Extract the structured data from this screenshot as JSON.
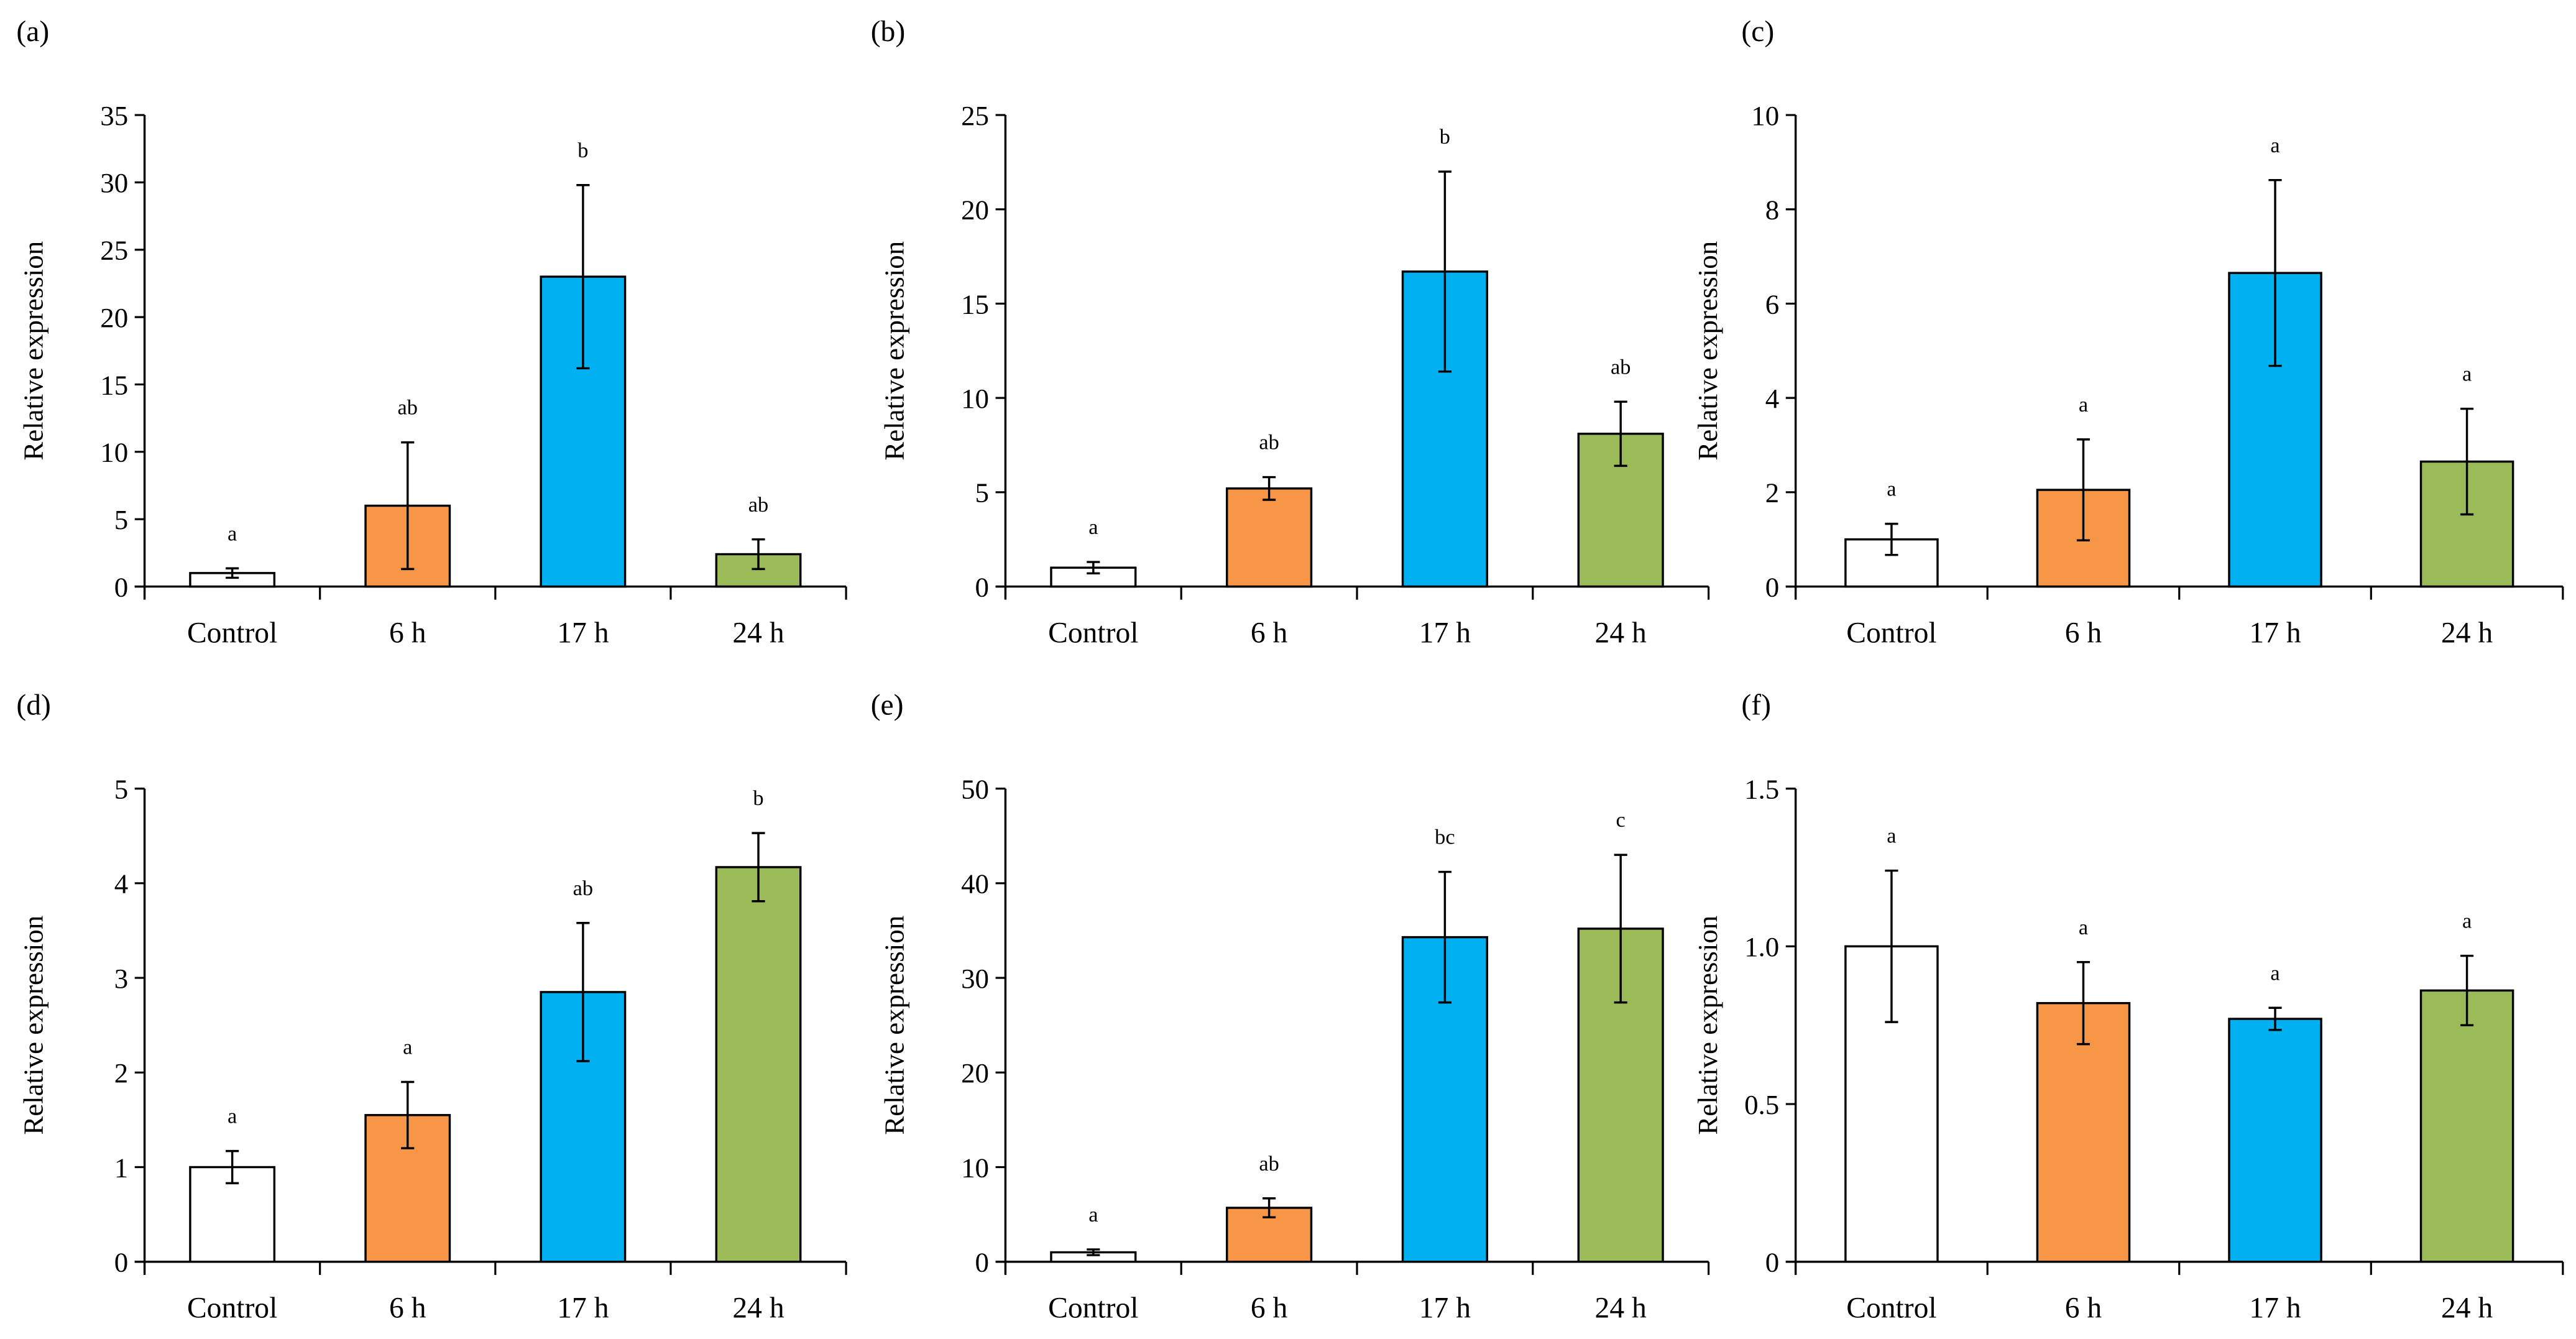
{
  "colors": {
    "Control": "#ffffff",
    "6 h": "#f79646",
    "17 h": "#00b0f0",
    "24 h": "#9bbb59",
    "stroke": "#000000"
  },
  "chart_data": [
    {
      "panel": "(a)",
      "type": "bar",
      "ylabel": "Relative expression",
      "xlabel": "",
      "categories": [
        "Control",
        "6 h",
        "17 h",
        "24 h"
      ],
      "values": [
        1.0,
        6.0,
        23.0,
        2.4
      ],
      "errors": [
        0.35,
        4.7,
        6.8,
        1.1
      ],
      "letters": [
        "a",
        "ab",
        "b",
        "ab"
      ],
      "ylim": [
        0,
        35
      ],
      "yticks": [
        "0",
        "5",
        "10",
        "15",
        "20",
        "25",
        "30",
        "35"
      ],
      "ytick_values": [
        0,
        5,
        10,
        15,
        20,
        25,
        30,
        35
      ]
    },
    {
      "panel": "(b)",
      "type": "bar",
      "ylabel": "Relative expression",
      "xlabel": "",
      "categories": [
        "Control",
        "6 h",
        "17 h",
        "24 h"
      ],
      "values": [
        1.0,
        5.2,
        16.7,
        8.1
      ],
      "errors": [
        0.3,
        0.6,
        5.3,
        1.7
      ],
      "letters": [
        "a",
        "ab",
        "b",
        "ab"
      ],
      "ylim": [
        0,
        25
      ],
      "yticks": [
        "0",
        "5",
        "10",
        "15",
        "20",
        "25"
      ],
      "ytick_values": [
        0,
        5,
        10,
        15,
        20,
        25
      ]
    },
    {
      "panel": "(c)",
      "type": "bar",
      "ylabel": "Relative expression",
      "xlabel": "",
      "categories": [
        "Control",
        "6 h",
        "17 h",
        "24 h"
      ],
      "values": [
        1.0,
        2.05,
        6.65,
        2.65
      ],
      "errors": [
        0.33,
        1.07,
        1.97,
        1.12
      ],
      "letters": [
        "a",
        "a",
        "a",
        "a"
      ],
      "ylim": [
        0,
        10
      ],
      "yticks": [
        "0",
        "2",
        "4",
        "6",
        "8",
        "10"
      ],
      "ytick_values": [
        0,
        2,
        4,
        6,
        8,
        10
      ]
    },
    {
      "panel": "(d)",
      "type": "bar",
      "ylabel": "Relative expression",
      "xlabel": "",
      "categories": [
        "Control",
        "6 h",
        "17 h",
        "24 h"
      ],
      "values": [
        1.0,
        1.55,
        2.85,
        4.17
      ],
      "errors": [
        0.17,
        0.35,
        0.73,
        0.36
      ],
      "letters": [
        "a",
        "a",
        "ab",
        "b"
      ],
      "ylim": [
        0,
        5
      ],
      "yticks": [
        "0",
        "1",
        "2",
        "3",
        "4",
        "5"
      ],
      "ytick_values": [
        0,
        1,
        2,
        3,
        4,
        5
      ]
    },
    {
      "panel": "(e)",
      "type": "bar",
      "ylabel": "Relative expression",
      "xlabel": "",
      "categories": [
        "Control",
        "6 h",
        "17 h",
        "24 h"
      ],
      "values": [
        1.0,
        5.7,
        34.3,
        35.2
      ],
      "errors": [
        0.3,
        1.0,
        6.9,
        7.8
      ],
      "letters": [
        "a",
        "ab",
        "bc",
        "c"
      ],
      "ylim": [
        0,
        50
      ],
      "yticks": [
        "0",
        "10",
        "20",
        "30",
        "40",
        "50"
      ],
      "ytick_values": [
        0,
        10,
        20,
        30,
        40,
        50
      ]
    },
    {
      "panel": "(f)",
      "type": "bar",
      "ylabel": "Relative expression",
      "xlabel": "",
      "categories": [
        "Control",
        "6 h",
        "17 h",
        "24 h"
      ],
      "values": [
        1.0,
        0.82,
        0.77,
        0.86
      ],
      "errors": [
        0.24,
        0.13,
        0.035,
        0.11
      ],
      "letters": [
        "a",
        "a",
        "a",
        "a"
      ],
      "ylim": [
        0,
        1.5
      ],
      "yticks": [
        "0",
        "0.5",
        "1.0",
        "1.5"
      ],
      "ytick_values": [
        0,
        0.5,
        1.0,
        1.5
      ]
    }
  ]
}
